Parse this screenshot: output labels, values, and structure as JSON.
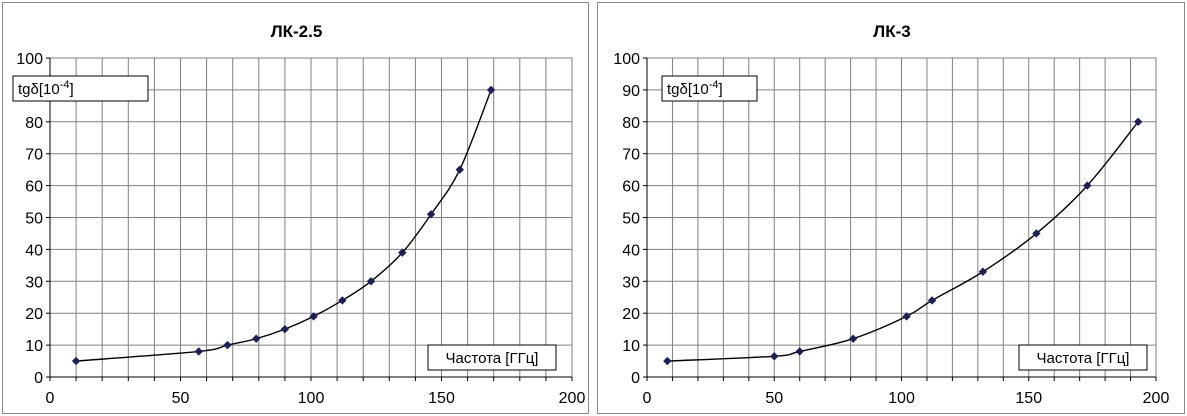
{
  "chart_data": [
    {
      "type": "line",
      "title": "ЛК-2.5",
      "ylabel_prefix": "tgδ[10",
      "ylabel_exp": "-4",
      "ylabel_suffix": "]",
      "xlabel": "Частота [ГГц]",
      "xlim": [
        0,
        200
      ],
      "ylim": [
        0,
        100
      ],
      "x_ticks": [
        0,
        50,
        100,
        150,
        200
      ],
      "y_ticks": [
        0,
        10,
        20,
        30,
        40,
        50,
        60,
        70,
        80,
        90,
        100
      ],
      "x_grid_step": 10,
      "grid": true,
      "marker": "diamond",
      "series": [
        {
          "x": [
            10,
            57,
            68,
            79,
            90,
            101,
            112,
            123,
            135,
            146,
            157,
            169
          ],
          "y": [
            5,
            8,
            10,
            12,
            15,
            19,
            24,
            30,
            39,
            51,
            65,
            90
          ]
        }
      ]
    },
    {
      "type": "line",
      "title": "ЛК-3",
      "ylabel_prefix": "tgδ[10",
      "ylabel_exp": "-4",
      "ylabel_suffix": "]",
      "xlabel": "Частота [ГГц]",
      "xlim": [
        0,
        200
      ],
      "ylim": [
        0,
        100
      ],
      "x_ticks": [
        0,
        50,
        100,
        150,
        200
      ],
      "y_ticks": [
        0,
        10,
        20,
        30,
        40,
        50,
        60,
        70,
        80,
        90,
        100
      ],
      "x_grid_step": 10,
      "grid": true,
      "marker": "diamond",
      "series": [
        {
          "x": [
            8,
            50,
            60,
            81,
            102,
            112,
            132,
            153,
            173,
            193
          ],
          "y": [
            5,
            6.5,
            8,
            12,
            19,
            24,
            33,
            45,
            60,
            80
          ]
        }
      ]
    }
  ]
}
